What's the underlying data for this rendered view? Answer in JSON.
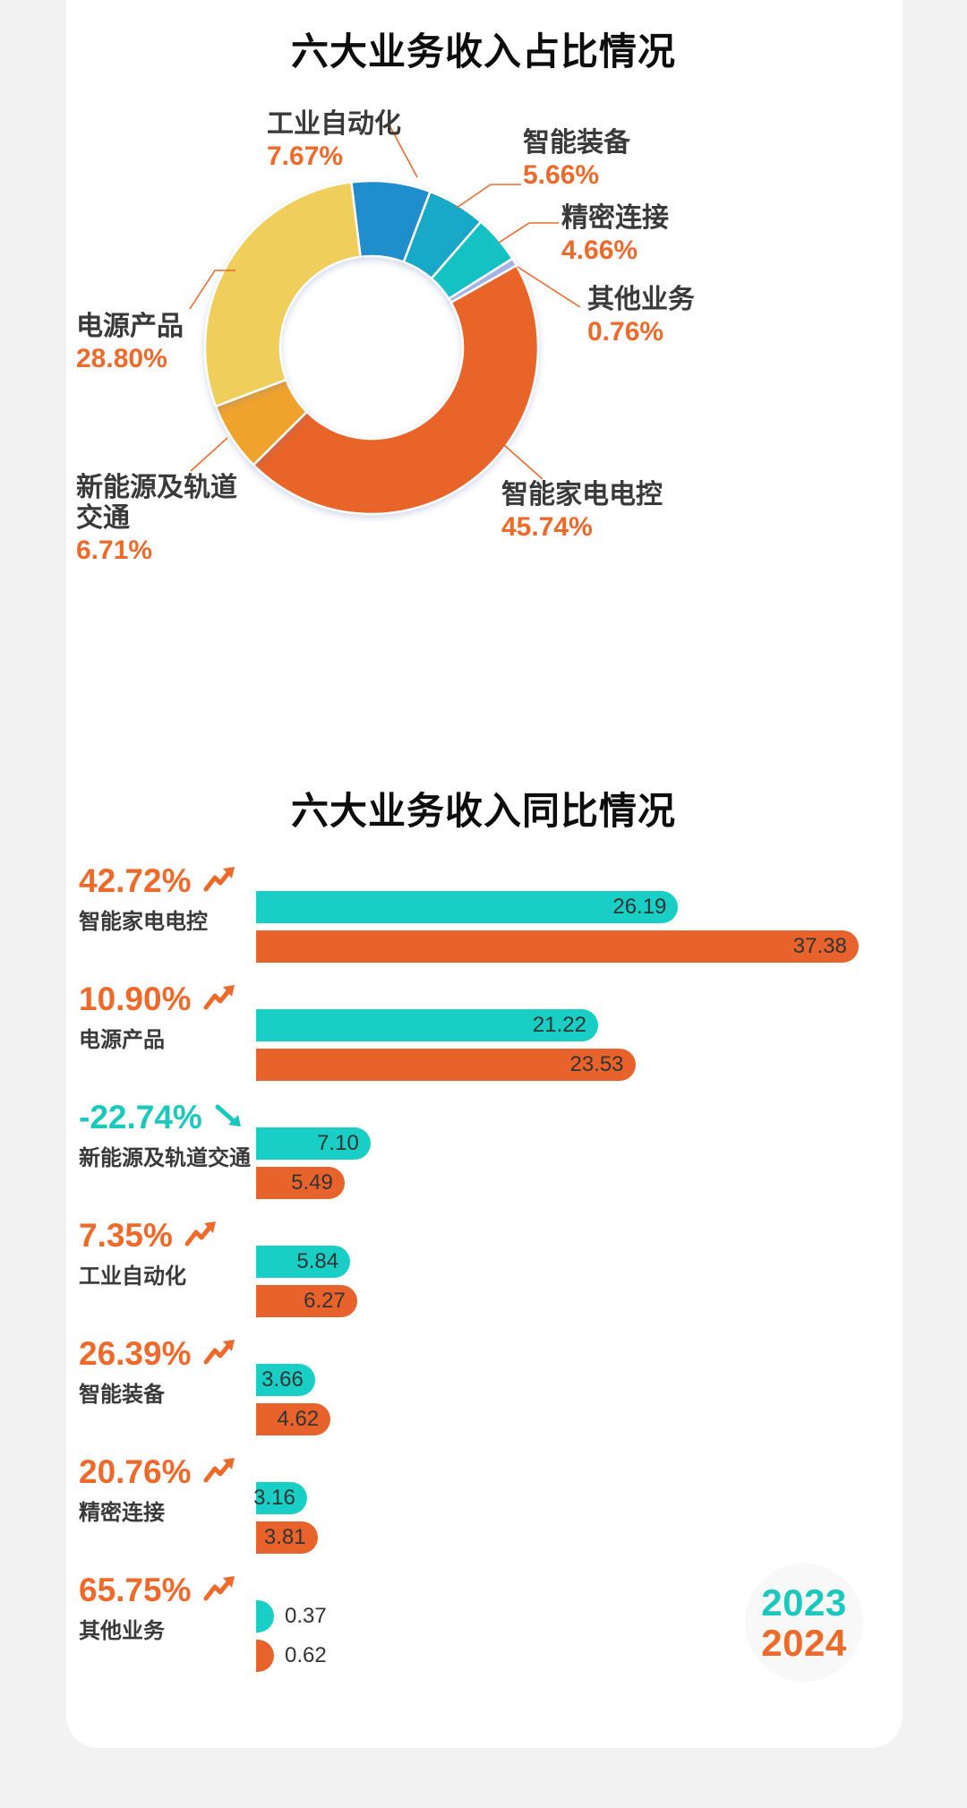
{
  "page": {
    "background": "#f2f2f2",
    "card_background": "#ffffff"
  },
  "donut_section": {
    "title": "六大业务收入占比情况"
  },
  "bar_section": {
    "title": "六大业务收入同比情况",
    "legend": {
      "year_2023": "2023",
      "year_2024": "2024"
    }
  },
  "colors": {
    "accent_orange": "#ED6A2B",
    "accent_teal": "#1BC8BE",
    "bar_2023": "#19CEC5",
    "bar_2024": "#E8632B",
    "label_dark": "#3a3a3a",
    "value_text": "#333333",
    "leader_line": "#ED6A2B"
  },
  "chart_data": [
    {
      "type": "pie",
      "subtype": "donut",
      "title": "六大业务收入占比情况",
      "start_angle_deg": -7,
      "clockwise": true,
      "slices": [
        {
          "label": "工业自动化",
          "value": 7.67,
          "display": "7.67%",
          "color": "#1E8ECD"
        },
        {
          "label": "智能装备",
          "value": 5.66,
          "display": "5.66%",
          "color": "#18A8C8"
        },
        {
          "label": "精密连接",
          "value": 4.66,
          "display": "4.66%",
          "color": "#14C2C4"
        },
        {
          "label": "其他业务",
          "value": 0.76,
          "display": "0.76%",
          "color": "#A8B4E6"
        },
        {
          "label": "智能家电电控",
          "value": 45.74,
          "display": "45.74%",
          "color": "#E96429"
        },
        {
          "label": "新能源及轨道交通",
          "value": 6.71,
          "display": "6.71%",
          "color": "#F0A32C"
        },
        {
          "label": "电源产品",
          "value": 28.8,
          "display": "28.80%",
          "color": "#F0CE5C"
        }
      ]
    },
    {
      "type": "bar",
      "orientation": "horizontal",
      "title": "六大业务收入同比情况",
      "legend": [
        "2023",
        "2024"
      ],
      "series_colors": {
        "2023": "#19CEC5",
        "2024": "#E8632B"
      },
      "groups": [
        {
          "label": "智能家电电控",
          "change": "42.72%",
          "trend": "up",
          "v2023": 26.19,
          "v2024": 37.38
        },
        {
          "label": "电源产品",
          "change": "10.90%",
          "trend": "up",
          "v2023": 21.22,
          "v2024": 23.53
        },
        {
          "label": "新能源及轨道交通",
          "change": "-22.74%",
          "trend": "down",
          "v2023": 7.1,
          "v2024": 5.49
        },
        {
          "label": "工业自动化",
          "change": "7.35%",
          "trend": "up",
          "v2023": 5.84,
          "v2024": 6.27
        },
        {
          "label": "智能装备",
          "change": "26.39%",
          "trend": "up",
          "v2023": 3.66,
          "v2024": 4.62
        },
        {
          "label": "精密连接",
          "change": "20.76%",
          "trend": "up",
          "v2023": 3.16,
          "v2024": 3.81
        },
        {
          "label": "其他业务",
          "change": "65.75%",
          "trend": "up",
          "v2023": 0.37,
          "v2024": 0.62
        }
      ]
    }
  ]
}
